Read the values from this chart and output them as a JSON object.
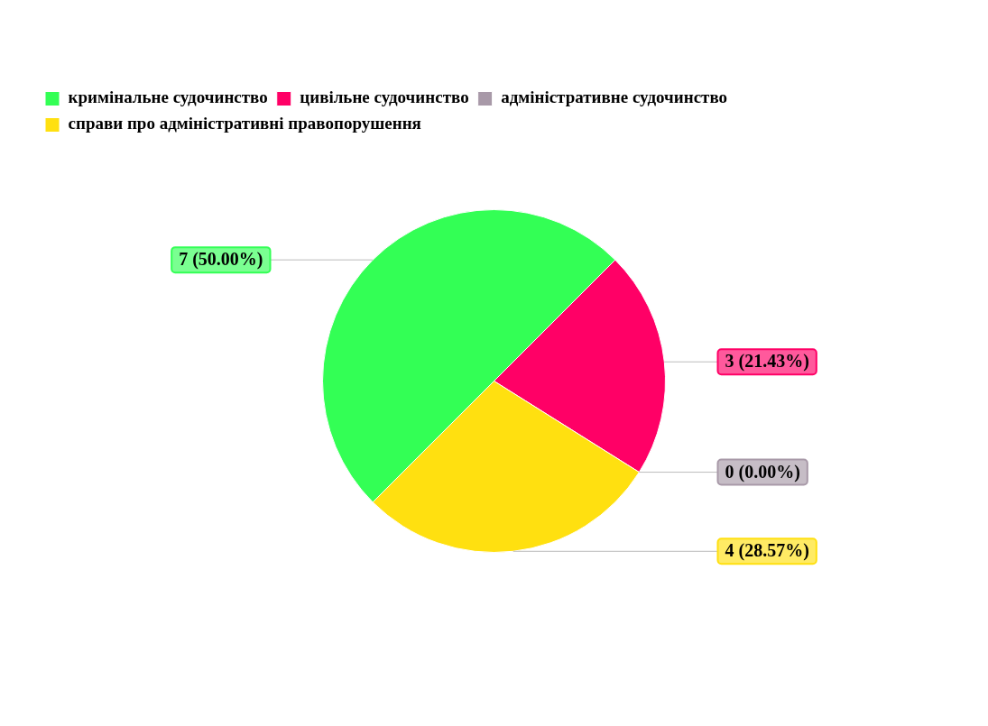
{
  "chart_data": {
    "type": "pie",
    "categories": [
      "кримінальне судочинство",
      "цивільне судочинство",
      "адміністративне судочинство",
      "справи про адміністративні правопорушення"
    ],
    "values": [
      7,
      3,
      0,
      4
    ],
    "colors": [
      "#33ff55",
      "#ff0066",
      "#a899a8",
      "#ffe010"
    ],
    "value_labels": [
      "7 (50.00%)",
      "3 (21.43%)",
      "0 (0.00%)",
      "4 (28.57%)"
    ],
    "legend": "top left"
  }
}
